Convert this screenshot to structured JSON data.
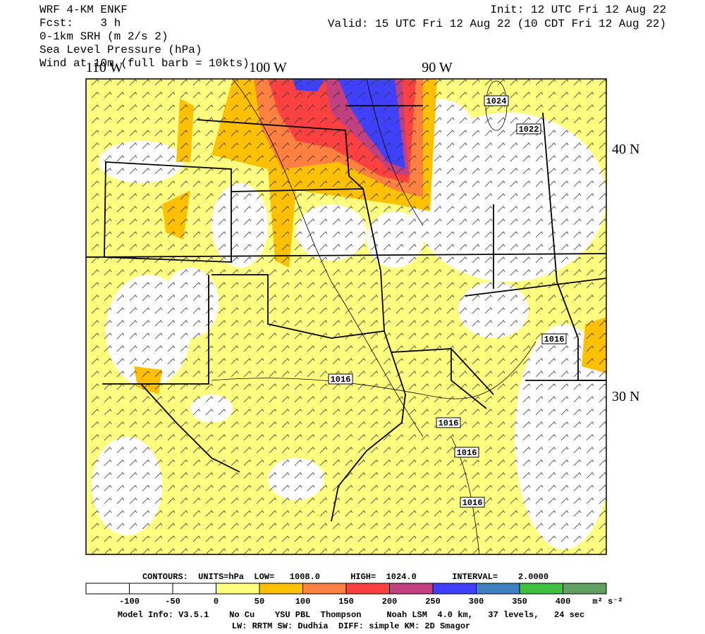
{
  "header": {
    "left": [
      "WRF 4-KM ENKF",
      "Fcst:    3 h",
      "0-1km SRH (m 2/s 2)",
      "Sea Level Pressure (hPa)",
      "Wind at 10m (full barb = 10kts)"
    ],
    "init": "Init: 12 UTC Fri 12 Aug 22",
    "valid": "Valid: 15 UTC Fri 12 Aug 22 (10 CDT Fri 12 Aug 22)"
  },
  "map": {
    "lon_labels": [
      "110 W",
      "100 W",
      "90 W"
    ],
    "lat_labels": [
      "40 N",
      "30 N"
    ],
    "contour_labels": [
      "1024",
      "1022",
      "1016",
      "1016",
      "1016",
      "1016",
      "1016"
    ]
  },
  "contour_info": "CONTOURS:  UNITS=hPa  LOW=   1008.0      HIGH=  1024.0       INTERVAL=    2.0000",
  "colorbar": {
    "colors": [
      "#ffffff",
      "#ffffff",
      "#ffffff",
      "#ffff80",
      "#ffc000",
      "#ff8040",
      "#ff4040",
      "#c04080",
      "#4040ff",
      "#4080c0",
      "#40c040",
      "#60a060"
    ],
    "labels": [
      "-100",
      "-50",
      "0",
      "50",
      "100",
      "150",
      "200",
      "250",
      "300",
      "350",
      "400"
    ],
    "units": "m² s⁻²"
  },
  "footer": [
    "Model Info: V3.5.1    No Cu    YSU PBL  Thompson     Noah LSM  4.0 km,   37 levels,   24 sec",
    "LW: RRTM SW: Dudhia  DIFF: simple KM: 2D Smagor"
  ]
}
